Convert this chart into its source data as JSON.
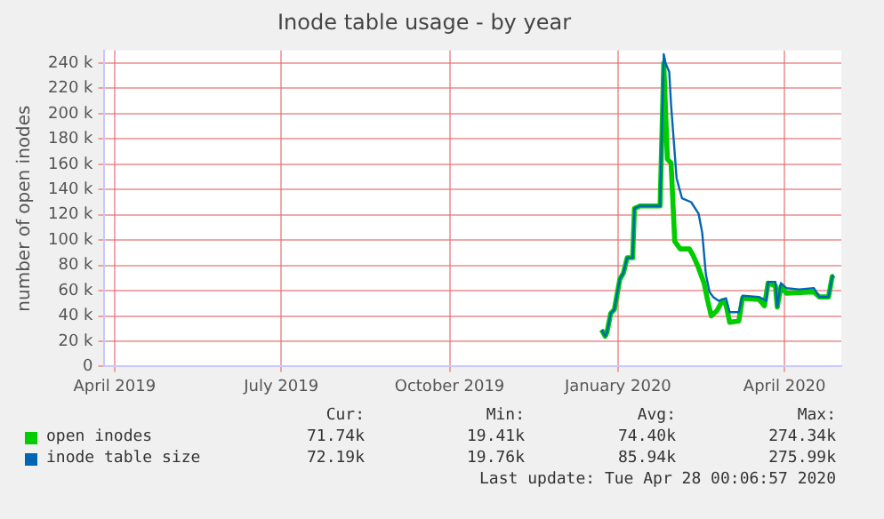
{
  "chart_data": {
    "type": "line",
    "title": "Inode table usage - by year",
    "ylabel": "number of open inodes",
    "xlim": [
      "2019-03-26",
      "2020-05-02"
    ],
    "xticks": [
      {
        "value": "2019-04-01",
        "label": "April 2019"
      },
      {
        "value": "2019-07-01",
        "label": "July 2019"
      },
      {
        "value": "2019-10-01",
        "label": "October 2019"
      },
      {
        "value": "2020-01-01",
        "label": "January 2020"
      },
      {
        "value": "2020-04-01",
        "label": "April 2020"
      }
    ],
    "ylim": [
      0,
      250000
    ],
    "yticks": [
      0,
      {
        "value": 20000,
        "label": "20 k"
      },
      {
        "value": 40000,
        "label": "40 k"
      },
      {
        "value": 60000,
        "label": "60 k"
      },
      {
        "value": 80000,
        "label": "80 k"
      },
      {
        "value": 100000,
        "label": "100 k"
      },
      {
        "value": 120000,
        "label": "120 k"
      },
      {
        "value": 140000,
        "label": "140 k"
      },
      {
        "value": 160000,
        "label": "160 k"
      },
      {
        "value": 180000,
        "label": "180 k"
      },
      {
        "value": 200000,
        "label": "200 k"
      },
      {
        "value": 220000,
        "label": "220 k"
      },
      {
        "value": 240000,
        "label": "240 k"
      }
    ],
    "grid": true,
    "legend": "bottom",
    "marker": "none",
    "line_style": "solid",
    "series": [
      {
        "name": "open inodes",
        "color": "#00cc00",
        "x": [
          "2019-12-23",
          "2019-12-25",
          "2019-12-26",
          "2019-12-28",
          "2019-12-30",
          "2020-01-02",
          "2020-01-04",
          "2020-01-06",
          "2020-01-09",
          "2020-01-10",
          "2020-01-13",
          "2020-01-24",
          "2020-01-26",
          "2020-01-28",
          "2020-01-30",
          "2020-02-01",
          "2020-02-04",
          "2020-02-09",
          "2020-02-11",
          "2020-02-14",
          "2020-02-17",
          "2020-02-19",
          "2020-02-21",
          "2020-02-24",
          "2020-02-27",
          "2020-02-29",
          "2020-03-02",
          "2020-03-07",
          "2020-03-09",
          "2020-03-18",
          "2020-03-21",
          "2020-03-23",
          "2020-03-27",
          "2020-03-28",
          "2020-03-30",
          "2020-04-02",
          "2020-04-17",
          "2020-04-20",
          "2020-04-25",
          "2020-04-27",
          "2020-04-28"
        ],
        "values": [
          29000,
          24000,
          27000,
          42000,
          45000,
          69000,
          74000,
          86000,
          86000,
          125000,
          127000,
          127000,
          240000,
          164000,
          161000,
          99000,
          93000,
          93000,
          88000,
          78000,
          66000,
          52000,
          40000,
          44000,
          52000,
          49000,
          35000,
          36000,
          54000,
          53000,
          48000,
          66000,
          64000,
          47000,
          63000,
          58000,
          59000,
          55000,
          55000,
          71000,
          72000
        ]
      },
      {
        "name": "inode table size",
        "color": "#0066b3",
        "x": [
          "2019-12-23",
          "2019-12-25",
          "2019-12-26",
          "2019-12-28",
          "2019-12-30",
          "2020-01-02",
          "2020-01-04",
          "2020-01-06",
          "2020-01-09",
          "2020-01-10",
          "2020-01-13",
          "2020-01-24",
          "2020-01-26",
          "2020-01-27",
          "2020-01-29",
          "2020-01-30",
          "2020-02-02",
          "2020-02-05",
          "2020-02-10",
          "2020-02-14",
          "2020-02-16",
          "2020-02-18",
          "2020-02-20",
          "2020-02-22",
          "2020-02-25",
          "2020-02-29",
          "2020-03-02",
          "2020-03-07",
          "2020-03-09",
          "2020-03-18",
          "2020-03-22",
          "2020-03-23",
          "2020-03-27",
          "2020-03-28",
          "2020-03-30",
          "2020-04-02",
          "2020-04-09",
          "2020-04-17",
          "2020-04-20",
          "2020-04-25",
          "2020-04-27",
          "2020-04-28"
        ],
        "values": [
          29000,
          24000,
          27000,
          42000,
          45000,
          69000,
          74000,
          86000,
          86000,
          125000,
          127000,
          127000,
          247000,
          240000,
          233000,
          207000,
          149000,
          133000,
          130000,
          121000,
          106000,
          73000,
          59000,
          55000,
          52000,
          54000,
          43000,
          43000,
          56000,
          55000,
          52000,
          67000,
          67000,
          47000,
          66000,
          62000,
          61000,
          62000,
          55000,
          55000,
          71000,
          72000
        ]
      }
    ],
    "annotations": [
      "Cur:",
      "Min:",
      "Avg:",
      "Max:",
      "71.74k",
      "19.41k",
      "74.40k",
      "274.34k",
      "72.19k",
      "19.76k",
      "85.94k",
      "275.99k",
      "Last update: Tue Apr 28 00:06:57 2020"
    ]
  }
}
